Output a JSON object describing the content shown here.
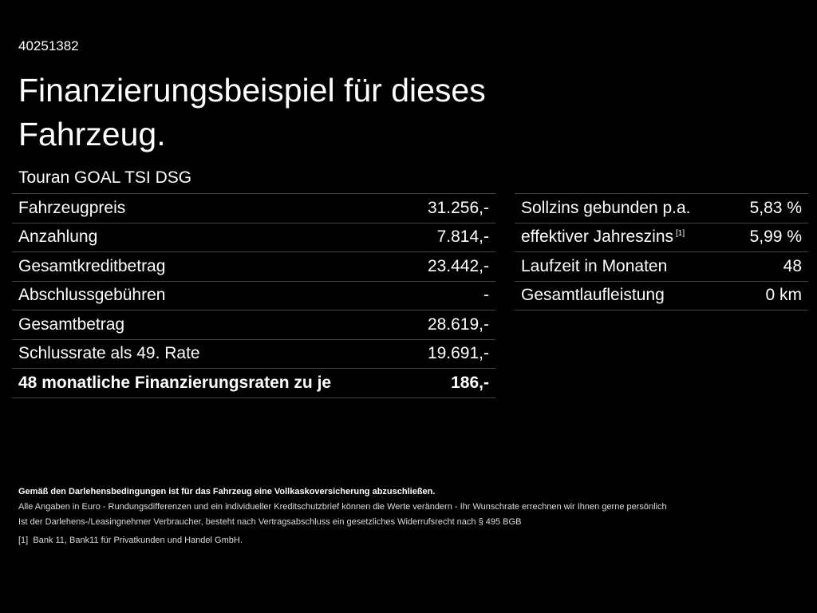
{
  "offer_id": "40251382",
  "title": "Finanzierungsbeispiel für dieses Fahrzeug.",
  "model": "Touran GOAL TSI DSG",
  "left_rows": [
    {
      "label": "Fahrzeugpreis",
      "value": "31.256,-"
    },
    {
      "label": "Anzahlung",
      "value": "7.814,-"
    },
    {
      "label": "Gesamtkreditbetrag",
      "value": "23.442,-"
    },
    {
      "label": "Abschlussgebühren",
      "value": "-"
    },
    {
      "label": "Gesamtbetrag",
      "value": "28.619,-"
    },
    {
      "label": "Schlussrate als 49. Rate",
      "value": "19.691,-"
    },
    {
      "label": "48 monatliche Finanzierungsraten zu je",
      "value": "186,-"
    }
  ],
  "right_rows": [
    {
      "label": "Sollzins gebunden p.a.",
      "value": "5,83 %"
    },
    {
      "label": "effektiver Jahreszins",
      "sup": "[1]",
      "value": "5,99 %"
    },
    {
      "label": "Laufzeit in Monaten",
      "value": "48"
    },
    {
      "label": "Gesamtlaufleistung",
      "value": "0 km"
    }
  ],
  "footer": {
    "insurance": "Gemäß den Darlehensbedingungen ist für das Fahrzeug eine Vollkaskoversicherung abzuschließen.",
    "note1": "Alle Angaben in Euro - Rundungsdifferenzen und ein individueller Kreditschutzbrief können die Werte verändern - Ihr Wunschrate errechnen wir Ihnen gerne persönlich",
    "note2": "Ist der Darlehens-/Leasingnehmer Verbraucher, besteht nach Vertragsabschluss ein gesetzliches Widerrufsrecht nach § 495 BGB",
    "footnote_mark": "[1]",
    "footnote": "Bank 11, Bank11 für Privatkunden und Handel GmbH."
  }
}
